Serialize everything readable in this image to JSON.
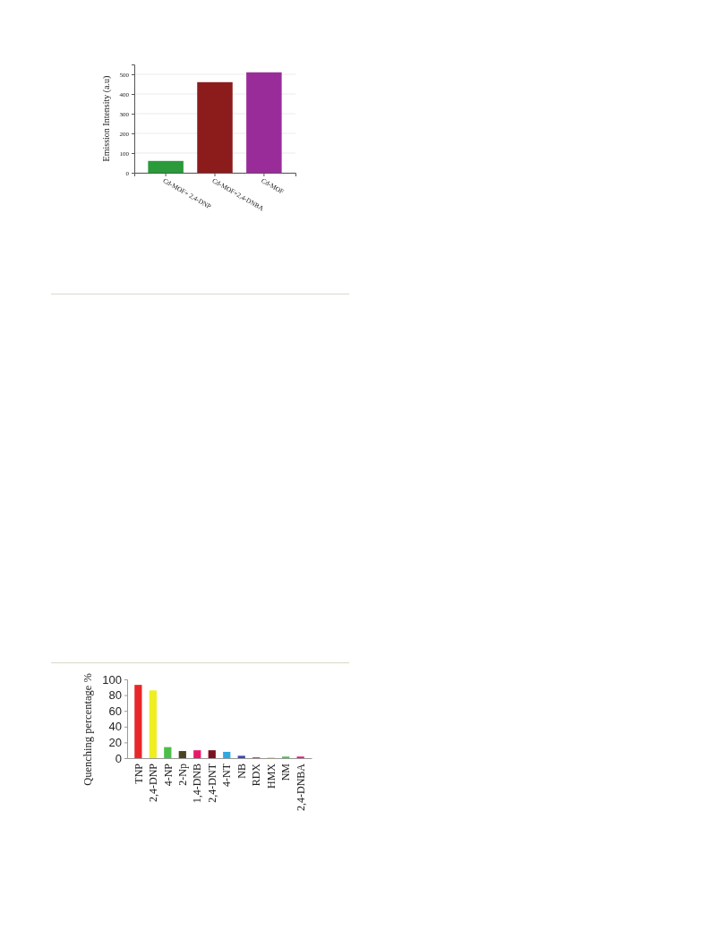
{
  "chart_data": [
    {
      "type": "bar",
      "ylabel": "Emission Intensity (a.u)",
      "categories": [
        "Cd-MOF+ 2,4-DNP",
        "Cd-MOF+2,4-DNBA",
        "Cd-MOF"
      ],
      "values": [
        60,
        460,
        510
      ],
      "colors": [
        "#2a9a3a",
        "#8c1c1c",
        "#9a2c9a"
      ],
      "ylim": [
        0,
        550
      ],
      "yticks": [
        0,
        100,
        200,
        300,
        400,
        500
      ],
      "grid": "y"
    },
    {
      "type": "bar",
      "ylabel": "Quenching percentage %",
      "categories": [
        "TNP",
        "2,4-DNP",
        "4-NP",
        "2-Np",
        "1,4-DNB",
        "2,4-DNT",
        "4-NT",
        "NB",
        "RDX",
        "HMX",
        "NM",
        "2,4-DNBA"
      ],
      "values": [
        93,
        86,
        14,
        9,
        10,
        10,
        8,
        3,
        1,
        1,
        2,
        2
      ],
      "colors": [
        "#e8262a",
        "#eeee22",
        "#4cbf4a",
        "#4a4224",
        "#e8186a",
        "#7a1020",
        "#30a8e0",
        "#3a48b0",
        "#e82828",
        "#f0e020",
        "#50c050",
        "#e81878"
      ],
      "ylim": [
        0,
        100
      ],
      "yticks": [
        0,
        20,
        40,
        60,
        80,
        100
      ]
    }
  ]
}
